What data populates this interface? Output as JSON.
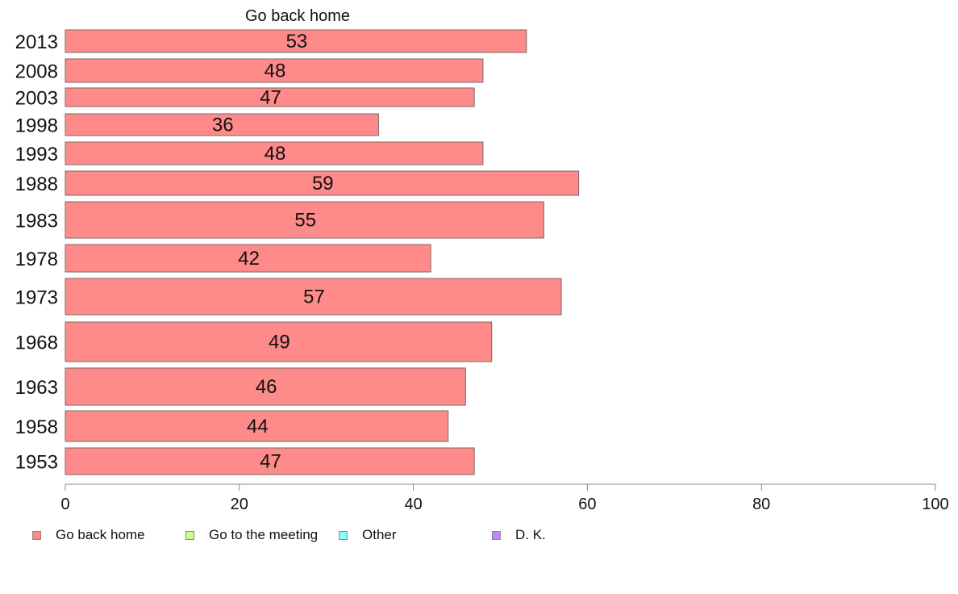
{
  "chart_data": {
    "type": "bar",
    "orientation": "horizontal",
    "title": "Go back home",
    "categories": [
      "2013",
      "2008",
      "2003",
      "1998",
      "1993",
      "1988",
      "1983",
      "1978",
      "1973",
      "1968",
      "1963",
      "1958",
      "1953"
    ],
    "series": [
      {
        "name": "Go back home",
        "color": "#ff8a8a",
        "values": [
          53,
          48,
          47,
          36,
          48,
          59,
          55,
          42,
          57,
          49,
          46,
          44,
          47
        ]
      }
    ],
    "xlim": [
      0,
      100
    ],
    "x_ticks": [
      0,
      20,
      40,
      60,
      80,
      100
    ],
    "grid": false,
    "legend_position": "bottom",
    "legend": [
      {
        "label": "Go back home",
        "color": "#ff8a8a"
      },
      {
        "label": "Go to the meeting",
        "color": "#ccff88"
      },
      {
        "label": "Other",
        "color": "#88ffff"
      },
      {
        "label": "D. K.",
        "color": "#bb88ff"
      }
    ]
  }
}
